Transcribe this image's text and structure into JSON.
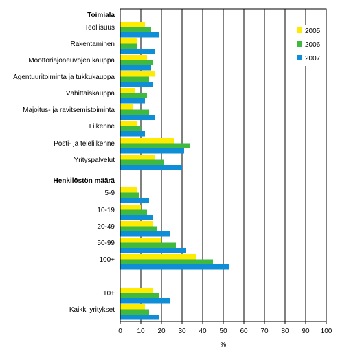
{
  "chart_data": {
    "type": "bar",
    "orientation": "horizontal",
    "xlabel": "%",
    "xlim": [
      0,
      100
    ],
    "xticks": [
      0,
      10,
      20,
      30,
      40,
      50,
      60,
      70,
      80,
      90,
      100
    ],
    "grid": "vertical",
    "legend_position": "top-right",
    "groups": [
      {
        "heading": "Toimiala",
        "categories": [
          "Teollisuus",
          "Rakentaminen",
          "Moottoriajoneuvojen kauppa",
          "Agentuuritoiminta ja tukkukauppa",
          "Vähittäiskauppa",
          "Majoitus- ja ravitsemistoiminta",
          "Liikenne",
          "Posti- ja teleliikenne",
          "Yrityspalvelut"
        ]
      },
      {
        "heading": "Henkilöstön määrä",
        "categories": [
          "5-9",
          "10-19",
          "20-49",
          "50-99",
          "100+"
        ]
      },
      {
        "heading": "",
        "categories": [
          "10+",
          "Kaikki yritykset"
        ]
      }
    ],
    "series": [
      {
        "name": "2005",
        "color": "#ffeb00",
        "values": [
          12,
          8,
          13,
          17,
          7,
          6,
          8,
          26,
          17,
          8,
          10,
          16,
          20,
          37,
          16,
          12
        ]
      },
      {
        "name": "2006",
        "color": "#3fb93f",
        "values": [
          15,
          8,
          16,
          14,
          13,
          14,
          10,
          34,
          21,
          9,
          13,
          18,
          27,
          45,
          19,
          14
        ]
      },
      {
        "name": "2007",
        "color": "#0d8ed6",
        "values": [
          19,
          17,
          15,
          16,
          12,
          17,
          12,
          31,
          30,
          14,
          16,
          24,
          32,
          53,
          24,
          19
        ]
      }
    ]
  }
}
